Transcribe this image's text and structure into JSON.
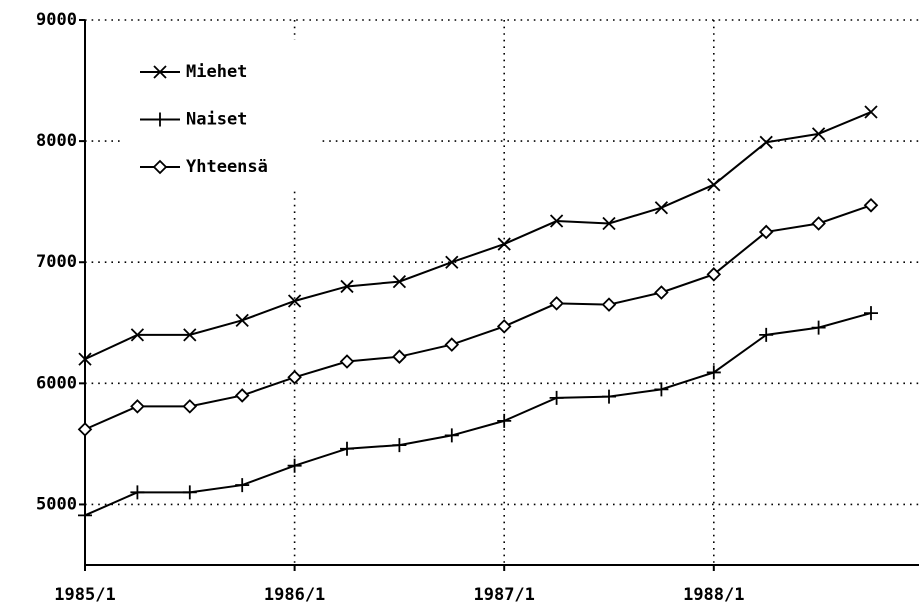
{
  "chart_data": {
    "type": "line",
    "categories": [
      "1985/1",
      null,
      null,
      null,
      "1986/1",
      null,
      null,
      null,
      "1987/1",
      null,
      null,
      null,
      "1988/1",
      null,
      null,
      null
    ],
    "series": [
      {
        "name": "Miehet",
        "color": "#000000",
        "marker": "x",
        "values": [
          6200,
          6400,
          6400,
          6520,
          6680,
          6800,
          6840,
          7000,
          7150,
          7340,
          7320,
          7450,
          7640,
          7990,
          8060,
          8240
        ]
      },
      {
        "name": "Naiset",
        "color": "#000000",
        "marker": "+",
        "values": [
          4910,
          5100,
          5100,
          5160,
          5320,
          5460,
          5490,
          5570,
          5690,
          5880,
          5890,
          5950,
          6090,
          6400,
          6460,
          6580
        ]
      },
      {
        "name": "Yhteensä",
        "color": "#000000",
        "marker": "diamond",
        "values": [
          5620,
          5810,
          5810,
          5900,
          6050,
          6180,
          6220,
          6320,
          6470,
          6660,
          6650,
          6750,
          6900,
          7250,
          7320,
          7470
        ]
      }
    ],
    "ylim": [
      4500,
      9000
    ],
    "yticks": [
      5000,
      6000,
      7000,
      8000,
      9000
    ],
    "grid": true,
    "legend": "upper left"
  }
}
